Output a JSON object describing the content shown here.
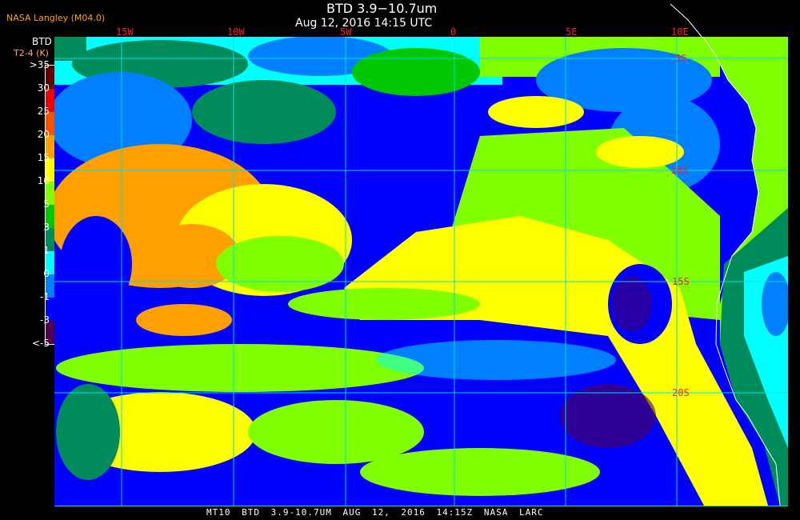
{
  "header": {
    "organization": "NASA Langley (M04.0)",
    "title": "BTD 3.9−10.7um",
    "subtitle": "Aug 12, 2016 14:15 UTC"
  },
  "longitude_labels": [
    "15W",
    "10W",
    "5W",
    "0",
    "5E",
    "10E"
  ],
  "latitude_labels": [
    "5S",
    "10S",
    "15S",
    "20S"
  ],
  "colorbar": {
    "title": "BTD",
    "unit": "T2-4 (K)",
    "labels": [
      ">35",
      "30",
      "25",
      "20",
      "15",
      "10",
      "5",
      "3",
      "1",
      "0",
      "-1",
      "-3",
      "<-5"
    ],
    "colors": [
      "#600000",
      "#f00000",
      "#ff5000",
      "#ffa000",
      "#ffff00",
      "#80ff00",
      "#00c800",
      "#008c5a",
      "#00ffff",
      "#0080ff",
      "#0000ff",
      "#500050"
    ]
  },
  "footer": {
    "text": "MT10  BTD 3.9-10.7UM   AUG 12, 2016 14:15Z   NASA LARC"
  },
  "colors": {
    "grid": "#00e0e0",
    "coastline": "#ffffff",
    "grid_label": "#ff2020"
  }
}
